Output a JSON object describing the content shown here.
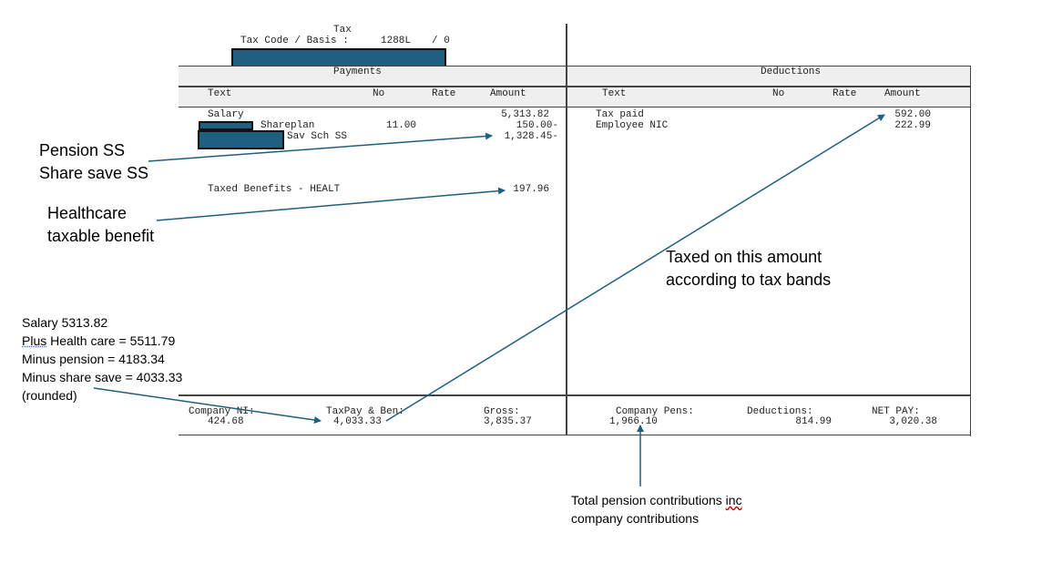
{
  "tax": {
    "heading": "Tax",
    "code_basis_label": "Tax Code / Basis :",
    "code": "1288L",
    "basis": "/ 0"
  },
  "payments": {
    "title": "Payments",
    "columns": [
      "Text",
      "No",
      "Rate",
      "Amount"
    ],
    "rows": [
      {
        "text": "Salary",
        "no": "",
        "amount": "5,313.82"
      },
      {
        "text": "Shareplan",
        "no": "11.00",
        "amount": "150.00-"
      },
      {
        "text": "Sav Sch SS",
        "no": "",
        "amount": "1,328.45-"
      },
      {
        "text": "Taxed Benefits - HEALT",
        "no": "",
        "amount": "197.96"
      }
    ]
  },
  "deductions": {
    "title": "Deductions",
    "columns": [
      "Text",
      "No",
      "Rate",
      "Amount"
    ],
    "rows": [
      {
        "text": "Tax paid",
        "amount": "592.00"
      },
      {
        "text": "Employee NIC",
        "amount": "222.99"
      }
    ]
  },
  "totals": {
    "company_ni": {
      "label": "Company NI:",
      "value": "424.68"
    },
    "taxpay_ben": {
      "label": "TaxPay & Ben:",
      "value": "4,033.33"
    },
    "gross": {
      "label": "Gross:",
      "value": "3,835.37"
    },
    "company_pens": {
      "label": "Company Pens:",
      "value": "1,966.10"
    },
    "deductions": {
      "label": "Deductions:",
      "value": "814.99"
    },
    "net_pay": {
      "label": "NET PAY:",
      "value": "3,020.38"
    }
  },
  "annotations": {
    "pension_line1": "Pension SS",
    "pension_line2": "Share save SS",
    "health_line1": "Healthcare",
    "health_line2": "taxable benefit",
    "taxed_line1": "Taxed on this amount",
    "taxed_line2": "according to tax bands",
    "calc_line1": "Salary 5313.82",
    "calc_line2_word": "Plus",
    "calc_line2_rest": " Health care = 5511.79",
    "calc_line3": "Minus pension = 4183.34",
    "calc_line4": "Minus share save = 4033.33",
    "calc_line5": "(rounded)",
    "pens_line1_pre": "Total pension contributions ",
    "pens_line1_word": "inc",
    "pens_line2": "company contributions"
  },
  "colors": {
    "redaction": "#1f5f7f",
    "arrow": "#1f5f7f",
    "header_bg": "#efefef"
  }
}
